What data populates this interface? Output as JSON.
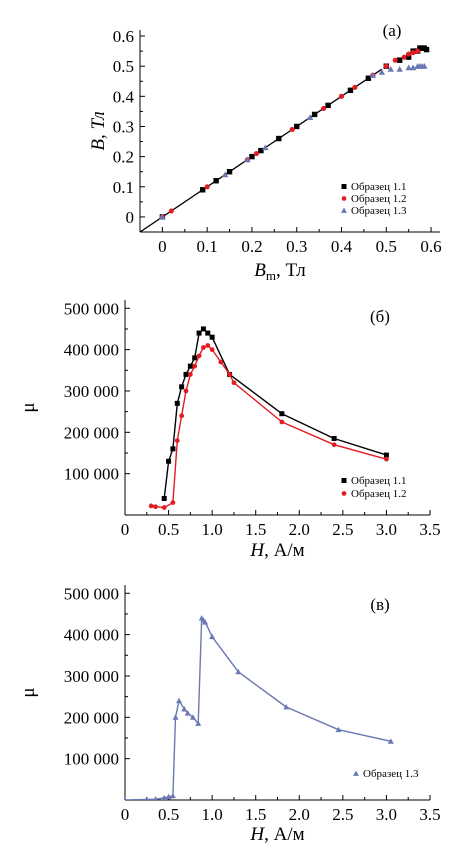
{
  "chart_data": [
    {
      "type": "scatter",
      "panel_label": "(a)",
      "ylabel": "B, Тл",
      "xlabel_main": "B",
      "xlabel_sub": "m",
      "xlabel_unit": ", Тл",
      "xlim": [
        -0.05,
        0.62
      ],
      "ylim": [
        -0.05,
        0.62
      ],
      "x_ticks": [
        0,
        0.1,
        0.2,
        0.3,
        0.4,
        0.5,
        0.6
      ],
      "x_tick_labels": [
        "0",
        "0.1",
        "0.2",
        "0.3",
        "0.4",
        "0.5",
        "0.6"
      ],
      "y_ticks": [
        0,
        0.1,
        0.2,
        0.3,
        0.4,
        0.5,
        0.6
      ],
      "y_tick_labels": [
        "0",
        "0.1",
        "0.2",
        "0.3",
        "0.4",
        "0.5",
        "0.6"
      ],
      "legend_position": "bottom-right",
      "fit_line": {
        "x": [
          -0.05,
          0.49
        ],
        "y": [
          -0.05,
          0.49
        ],
        "color": "#000000"
      },
      "series": [
        {
          "name": "Образец 1.1",
          "marker": "square",
          "color": "#000000",
          "x": [
            0.0,
            0.09,
            0.12,
            0.15,
            0.2,
            0.22,
            0.26,
            0.3,
            0.34,
            0.37,
            0.42,
            0.46,
            0.5,
            0.53,
            0.55,
            0.56,
            0.57,
            0.575,
            0.58,
            0.585,
            0.59
          ],
          "y": [
            0.0,
            0.09,
            0.12,
            0.15,
            0.2,
            0.22,
            0.26,
            0.3,
            0.34,
            0.37,
            0.42,
            0.46,
            0.5,
            0.52,
            0.53,
            0.55,
            0.55,
            0.56,
            0.56,
            0.56,
            0.555
          ]
        },
        {
          "name": "Образец 1.2",
          "marker": "circle",
          "color": "#e31b23",
          "x": [
            0.0,
            0.02,
            0.1,
            0.19,
            0.21,
            0.29,
            0.36,
            0.4,
            0.43,
            0.47,
            0.5,
            0.52,
            0.54,
            0.55,
            0.56,
            0.57
          ],
          "y": [
            0.0,
            0.02,
            0.1,
            0.19,
            0.21,
            0.29,
            0.36,
            0.4,
            0.43,
            0.47,
            0.5,
            0.52,
            0.53,
            0.54,
            0.545,
            0.55
          ]
        },
        {
          "name": "Образец 1.3",
          "marker": "triangle",
          "color": "#6a78b3",
          "x": [
            0.0,
            0.14,
            0.19,
            0.23,
            0.33,
            0.47,
            0.49,
            0.51,
            0.53,
            0.55,
            0.56,
            0.57,
            0.575,
            0.58,
            0.585
          ],
          "y": [
            0.0,
            0.14,
            0.19,
            0.23,
            0.33,
            0.47,
            0.48,
            0.49,
            0.49,
            0.495,
            0.495,
            0.5,
            0.5,
            0.5,
            0.5
          ]
        }
      ]
    },
    {
      "type": "line",
      "panel_label": "(б)",
      "ylabel": "μ",
      "xlabel_main": "H",
      "xlabel_sub": "",
      "xlabel_unit": ", А/м",
      "xlim": [
        0,
        3.5
      ],
      "ylim": [
        0,
        520000
      ],
      "x_ticks": [
        0,
        0.5,
        1,
        1.5,
        2,
        2.5,
        3,
        3.5
      ],
      "x_tick_labels": [
        "0",
        "0.5",
        "1.0",
        "1.5",
        "2.0",
        "2.5",
        "3.0",
        "3.5"
      ],
      "y_ticks": [
        100000,
        200000,
        300000,
        400000,
        500000
      ],
      "y_tick_labels": [
        "100 000",
        "200 000",
        "300 000",
        "400 000",
        "500 000"
      ],
      "legend_position": "bottom-right",
      "series": [
        {
          "name": "Образец 1.1",
          "marker": "square",
          "color": "#000000",
          "x": [
            0.45,
            0.5,
            0.55,
            0.6,
            0.65,
            0.7,
            0.75,
            0.8,
            0.85,
            0.9,
            0.95,
            1.0,
            1.2,
            1.8,
            2.4,
            3.0
          ],
          "y": [
            40000,
            130000,
            160000,
            270000,
            310000,
            340000,
            360000,
            380000,
            440000,
            450000,
            440000,
            430000,
            340000,
            245000,
            185000,
            145000
          ]
        },
        {
          "name": "Образец 1.2",
          "marker": "circle",
          "color": "#e31b23",
          "x": [
            0.3,
            0.35,
            0.45,
            0.55,
            0.6,
            0.65,
            0.7,
            0.75,
            0.8,
            0.85,
            0.9,
            0.95,
            1.0,
            1.1,
            1.2,
            1.25,
            1.8,
            2.4,
            3.0
          ],
          "y": [
            22000,
            20000,
            18000,
            30000,
            180000,
            240000,
            300000,
            340000,
            360000,
            385000,
            405000,
            410000,
            400000,
            370000,
            340000,
            320000,
            225000,
            170000,
            135000
          ]
        }
      ]
    },
    {
      "type": "line",
      "panel_label": "(в)",
      "ylabel": "μ",
      "xlabel_main": "H",
      "xlabel_sub": "",
      "xlabel_unit": ", А/м",
      "xlim": [
        0,
        3.5
      ],
      "ylim": [
        0,
        520000
      ],
      "x_ticks": [
        0,
        0.5,
        1,
        1.5,
        2,
        2.5,
        3,
        3.5
      ],
      "x_tick_labels": [
        "0",
        "0.5",
        "1.0",
        "1.5",
        "2.0",
        "2.5",
        "3.0",
        "3.5"
      ],
      "y_ticks": [
        100000,
        200000,
        300000,
        400000,
        500000
      ],
      "y_tick_labels": [
        "100 000",
        "200 000",
        "300 000",
        "400 000",
        "500 000"
      ],
      "legend_position": "bottom-right",
      "series": [
        {
          "name": "Образец 1.3",
          "marker": "triangle",
          "color": "#6a78b3",
          "x": [
            0.0,
            0.35,
            0.45,
            0.5,
            0.55,
            0.58,
            0.62,
            0.68,
            0.72,
            0.78,
            0.84,
            0.88,
            0.9,
            0.92,
            1.0,
            1.3,
            1.85,
            2.45,
            3.05
          ],
          "y": [
            0,
            2000,
            5000,
            8000,
            10000,
            200000,
            240000,
            220000,
            210000,
            200000,
            185000,
            440000,
            435000,
            430000,
            395000,
            310000,
            225000,
            170000,
            142000
          ]
        }
      ]
    }
  ]
}
